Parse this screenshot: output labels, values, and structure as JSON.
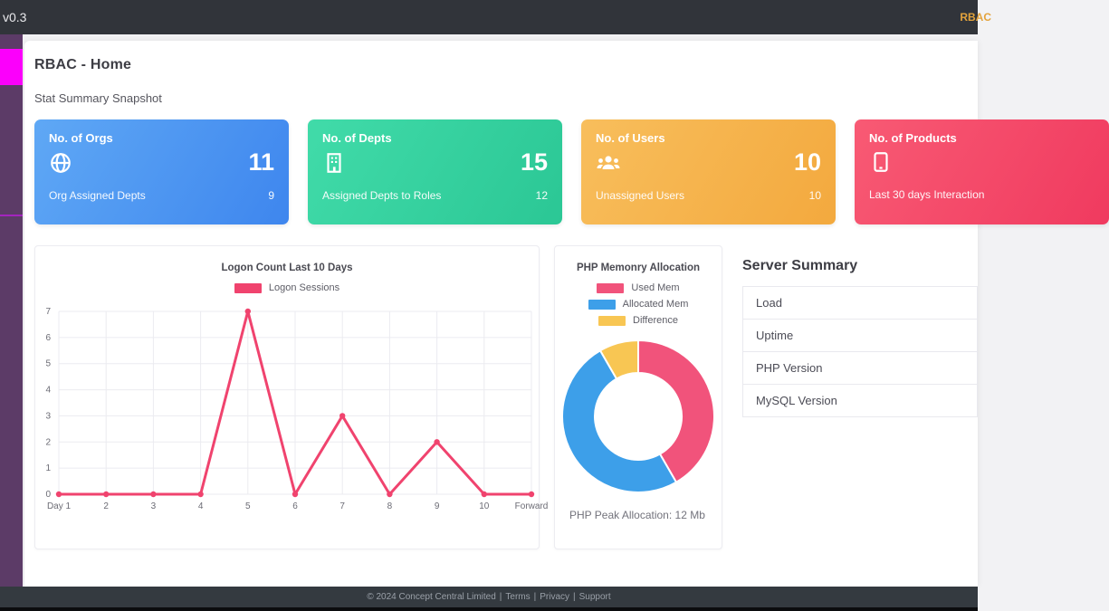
{
  "top_bar": {
    "version": "v0.3",
    "nav_link": "RBAC"
  },
  "page": {
    "title": "RBAC - Home",
    "subtitle": "Stat Summary Snapshot"
  },
  "stat_cards": [
    {
      "title": "No. of Orgs",
      "icon": "globe-icon",
      "value": "11",
      "footer_label": "Org Assigned Depts",
      "footer_value": "9",
      "gradient_from": "#5fa8f5",
      "gradient_to": "#3e86ee"
    },
    {
      "title": "No. of Depts",
      "icon": "building-icon",
      "value": "15",
      "footer_label": "Assigned Depts to Roles",
      "footer_value": "12",
      "gradient_from": "#41dba9",
      "gradient_to": "#2bc795"
    },
    {
      "title": "No. of Users",
      "icon": "users-icon",
      "value": "10",
      "footer_label": "Unassigned Users",
      "footer_value": "10",
      "gradient_from": "#f8be5c",
      "gradient_to": "#f3a93e"
    },
    {
      "title": "No. of Products",
      "icon": "tablet-icon",
      "value": "",
      "footer_label": "Last 30 days Interaction",
      "footer_value": "",
      "gradient_from": "#f85a74",
      "gradient_to": "#f03a5f"
    }
  ],
  "chart_data": [
    {
      "type": "line",
      "title": "Logon Count Last 10 Days",
      "categories": [
        "Day 1",
        "2",
        "3",
        "4",
        "5",
        "6",
        "7",
        "8",
        "9",
        "10",
        "Forward"
      ],
      "series": [
        {
          "name": "Logon Sessions",
          "values": [
            0,
            0,
            0,
            0,
            7,
            0,
            3,
            0,
            2,
            0,
            0
          ],
          "color": "#f0436e"
        }
      ],
      "ylim": [
        0,
        7
      ],
      "grid": true,
      "legend_position": "top"
    },
    {
      "type": "doughnut",
      "title": "PHP Memonry Allocation",
      "labels": [
        "Used Mem",
        "Allocated Mem",
        "Difference"
      ],
      "values": [
        10,
        12,
        2
      ],
      "colors": [
        "#f1537b",
        "#3d9fe9",
        "#f8c653"
      ],
      "caption": "PHP Peak Allocation: 12 Mb",
      "legend_position": "top"
    }
  ],
  "server_summary": {
    "title": "Server Summary",
    "rows": [
      "Load",
      "Uptime",
      "PHP Version",
      "MySQL Version"
    ]
  },
  "footer": {
    "copyright": "© 2024 Concept Central Limited",
    "separator": "|",
    "links": [
      "Terms",
      "Privacy",
      "Support"
    ]
  }
}
